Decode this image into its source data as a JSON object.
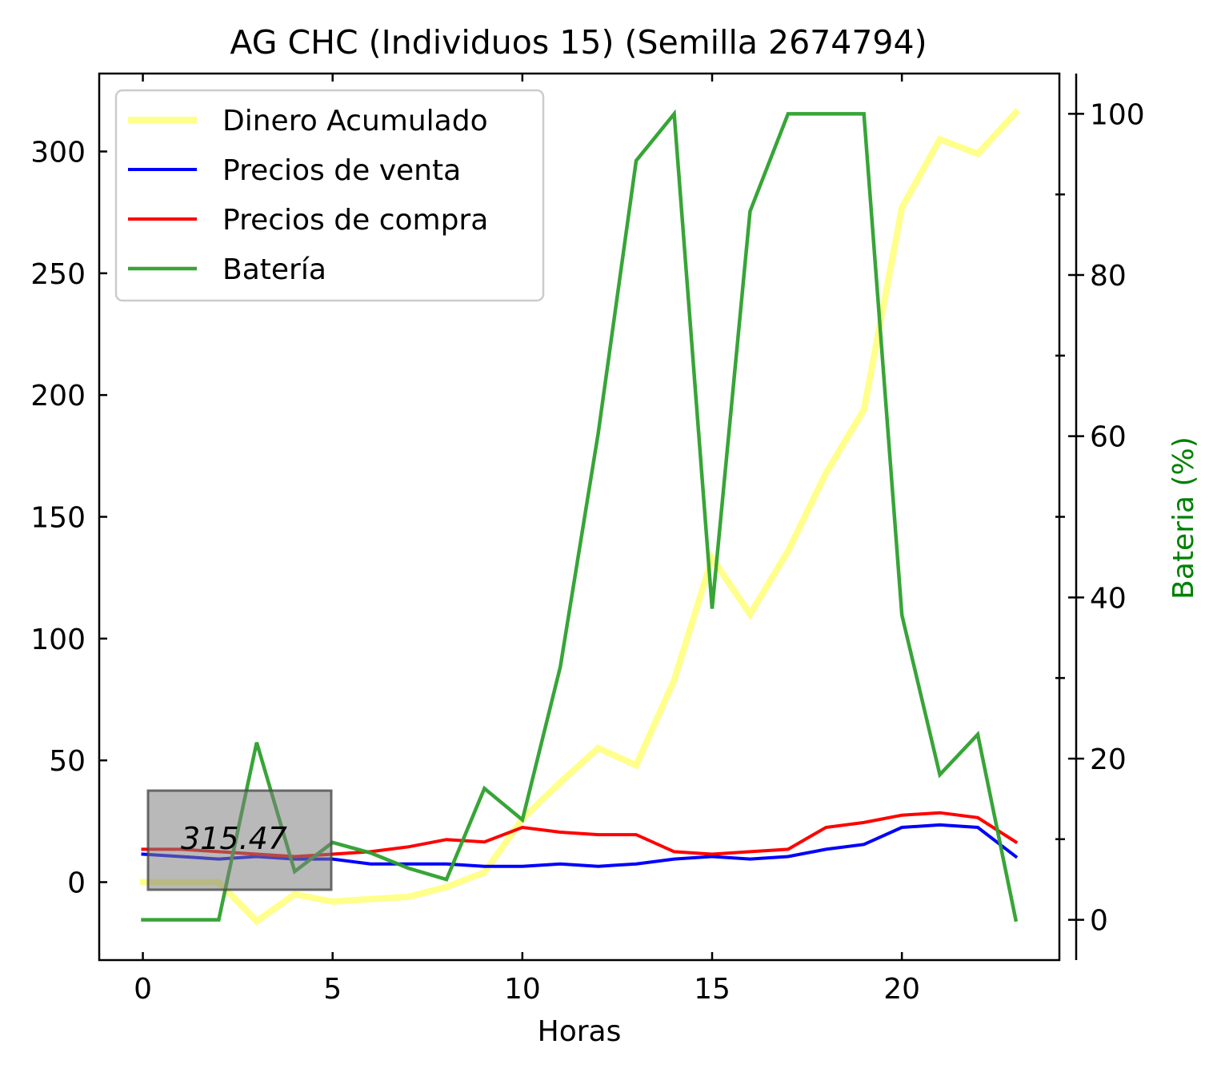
{
  "chart_data": {
    "type": "line",
    "title": "AG CHC (Individuos 15) (Semilla 2674794)",
    "xlabel": "Horas",
    "ylabel": "",
    "ylabel_right": "Bateria (%)",
    "xlim": [
      -1.15,
      24.15
    ],
    "ylim": [
      -32,
      332
    ],
    "ylim_right": [
      -5,
      105
    ],
    "x_ticks": [
      0,
      5,
      10,
      15,
      20
    ],
    "y_ticks": [
      0,
      50,
      100,
      150,
      200,
      250,
      300
    ],
    "y_ticks_right": [
      0,
      20,
      40,
      60,
      80,
      100
    ],
    "grid": false,
    "legend_position": "upper-left",
    "x": [
      0,
      1,
      2,
      3,
      4,
      5,
      6,
      7,
      8,
      9,
      10,
      11,
      12,
      13,
      14,
      15,
      16,
      17,
      18,
      19,
      20,
      21,
      22,
      23
    ],
    "series": [
      {
        "name": "Dinero Acumulado",
        "axis": "left",
        "color": "#ffff77",
        "values": [
          0,
          0,
          0,
          -16,
          -5,
          -8,
          -7,
          -6,
          -2,
          4,
          26,
          41,
          55,
          48,
          83,
          133,
          110,
          136,
          168,
          194,
          277,
          305,
          299,
          316
        ]
      },
      {
        "name": "Precios de venta",
        "axis": "left",
        "color": "#0000ff",
        "values": [
          11.5,
          10.5,
          9.5,
          10.5,
          9.5,
          9.5,
          7.5,
          7.5,
          7.5,
          6.5,
          6.5,
          7.5,
          6.5,
          7.5,
          9.5,
          10.5,
          9.5,
          10.5,
          13.5,
          15.5,
          22.5,
          23.5,
          22.5,
          10.5
        ]
      },
      {
        "name": "Precios de compra",
        "axis": "left",
        "color": "#ff0000",
        "values": [
          13.5,
          13.5,
          12.5,
          11.5,
          10.5,
          11.5,
          12.5,
          14.5,
          17.5,
          16.5,
          22.5,
          20.5,
          19.5,
          19.5,
          12.5,
          11.5,
          12.5,
          13.5,
          22.5,
          24.5,
          27.5,
          28.5,
          26.5,
          16.5
        ]
      },
      {
        "name": "Batería",
        "axis": "right",
        "color": "#2ca02c",
        "values": [
          0,
          0,
          0,
          22,
          6,
          9.6,
          8.3,
          6.4,
          5,
          16.3,
          12.4,
          31.4,
          60.4,
          94.2,
          100,
          38.6,
          87.9,
          100,
          100,
          100,
          37.8,
          18,
          23,
          0
        ]
      }
    ],
    "annotation": {
      "text": "315.47"
    }
  }
}
